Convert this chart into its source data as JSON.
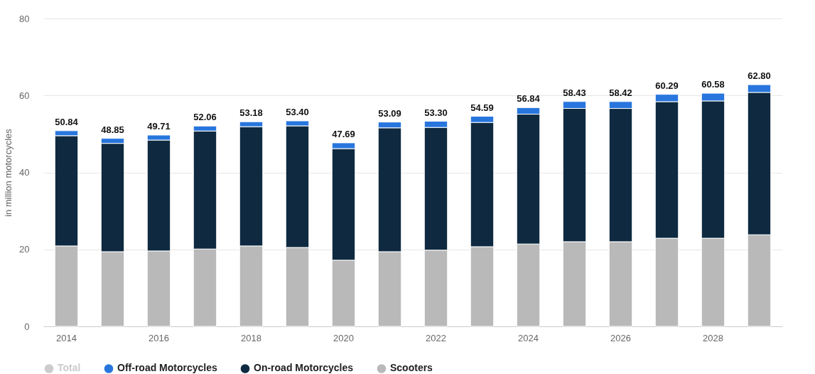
{
  "chart_data": {
    "type": "bar",
    "stacked": true,
    "ylabel": "in million motorcycles",
    "categories": [
      "2014",
      null,
      "2016",
      null,
      "2018",
      null,
      "2020",
      null,
      "2022",
      null,
      "2024",
      null,
      "2026",
      null,
      "2028",
      null
    ],
    "series": [
      {
        "name": "Scooters",
        "color": "#b9b9b9",
        "values": [
          20.9,
          19.4,
          19.6,
          20.1,
          20.9,
          20.5,
          17.2,
          19.4,
          19.8,
          20.7,
          21.4,
          22.0,
          22.0,
          22.9,
          22.9,
          23.8
        ]
      },
      {
        "name": "On-road Motorcycles",
        "color": "#0f2a40",
        "values": [
          28.64,
          28.15,
          28.81,
          30.66,
          30.98,
          31.6,
          28.99,
          32.19,
          31.9,
          32.29,
          33.74,
          34.63,
          34.62,
          35.49,
          35.68,
          37.0
        ]
      },
      {
        "name": "Off-road Motorcycles",
        "color": "#2876dd",
        "values": [
          1.3,
          1.3,
          1.3,
          1.3,
          1.3,
          1.3,
          1.5,
          1.5,
          1.6,
          1.6,
          1.7,
          1.8,
          1.8,
          1.9,
          2.0,
          2.0
        ]
      },
      {
        "name": "Total",
        "color": "#cccccc",
        "values": [
          null,
          null,
          null,
          null,
          null,
          null,
          null,
          null,
          null,
          null,
          null,
          null,
          null,
          null,
          null,
          null
        ]
      }
    ],
    "totals": [
      "50.84",
      "48.85",
      "49.71",
      "52.06",
      "53.18",
      "53.40",
      "47.69",
      "53.09",
      "53.30",
      "54.59",
      "56.84",
      "58.43",
      "58.42",
      "60.29",
      "60.58",
      "62.80"
    ],
    "ylim": [
      0,
      80
    ],
    "yticks": [
      0,
      20,
      40,
      60,
      80
    ],
    "grid": "y",
    "legend": "bottom"
  }
}
